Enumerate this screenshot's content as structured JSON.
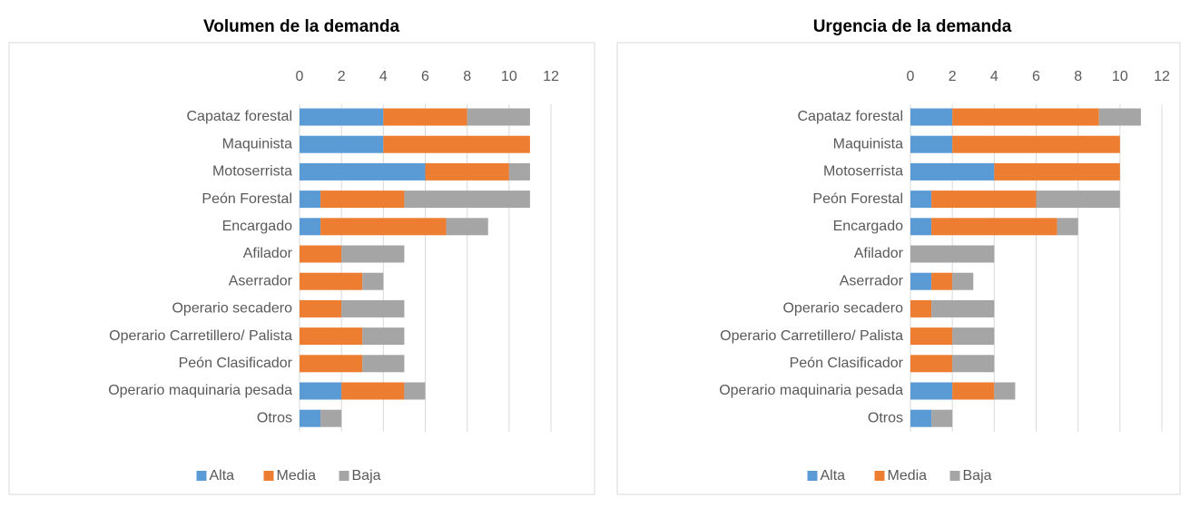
{
  "chart_data": [
    {
      "type": "stacked-bar-horizontal",
      "title": "Volumen de la demanda",
      "categories": [
        "Capataz forestal",
        "Maquinista",
        "Motoserrista",
        "Peón Forestal",
        "Encargado",
        "Afilador",
        "Aserrador",
        "Operario secadero",
        "Operario Carretillero/ Palista",
        "Peón Clasificador",
        "Operario maquinaria pesada",
        "Otros"
      ],
      "series": [
        {
          "name": "Alta",
          "color": "#5b9bd5",
          "values": [
            4,
            4,
            6,
            1,
            1,
            0,
            0,
            0,
            0,
            0,
            2,
            1
          ]
        },
        {
          "name": "Media",
          "color": "#ed7d31",
          "values": [
            4,
            7,
            4,
            4,
            6,
            2,
            3,
            2,
            3,
            3,
            3,
            0
          ]
        },
        {
          "name": "Baja",
          "color": "#a5a5a5",
          "values": [
            3,
            0,
            1,
            6,
            2,
            3,
            1,
            3,
            2,
            2,
            1,
            1
          ]
        }
      ],
      "xlim": [
        0,
        12
      ],
      "xticks": [
        0,
        2,
        4,
        6,
        8,
        10,
        12
      ],
      "grid": true,
      "legend": "bottom"
    },
    {
      "type": "stacked-bar-horizontal",
      "title": "Urgencia de la demanda",
      "categories": [
        "Capataz forestal",
        "Maquinista",
        "Motoserrista",
        "Peón Forestal",
        "Encargado",
        "Afilador",
        "Aserrador",
        "Operario secadero",
        "Operario Carretillero/ Palista",
        "Peón Clasificador",
        "Operario maquinaria pesada",
        "Otros"
      ],
      "series": [
        {
          "name": "Alta",
          "color": "#5b9bd5",
          "values": [
            2,
            2,
            4,
            1,
            1,
            0,
            1,
            0,
            0,
            0,
            2,
            1
          ]
        },
        {
          "name": "Media",
          "color": "#ed7d31",
          "values": [
            7,
            8,
            6,
            5,
            6,
            0,
            1,
            1,
            2,
            2,
            2,
            0
          ]
        },
        {
          "name": "Baja",
          "color": "#a5a5a5",
          "values": [
            2,
            0,
            0,
            4,
            1,
            4,
            1,
            3,
            2,
            2,
            1,
            1
          ]
        }
      ],
      "xlim": [
        0,
        12
      ],
      "xticks": [
        0,
        2,
        4,
        6,
        8,
        10,
        12
      ],
      "grid": true,
      "legend": "bottom"
    }
  ]
}
